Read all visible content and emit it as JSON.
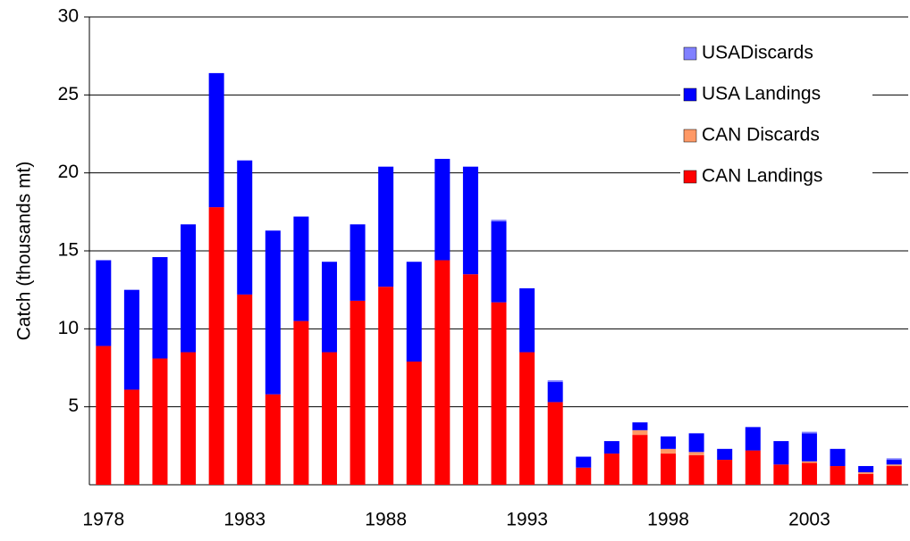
{
  "chart_data": {
    "type": "stacked_bar",
    "y_label": "Catch (thousands mt)",
    "categories": [
      "1978",
      null,
      null,
      null,
      null,
      "1983",
      null,
      null,
      null,
      null,
      "1988",
      null,
      null,
      null,
      null,
      "1993",
      null,
      null,
      null,
      null,
      "1998",
      null,
      null,
      null,
      null,
      "2003",
      null,
      null,
      null
    ],
    "series": [
      {
        "name": "CAN Landings",
        "color": "#ff0000",
        "values": [
          8.9,
          6.1,
          8.1,
          8.5,
          17.8,
          12.2,
          5.8,
          10.5,
          8.5,
          11.8,
          12.7,
          7.9,
          14.4,
          13.5,
          11.7,
          8.5,
          5.3,
          1.1,
          2.0,
          3.2,
          2.0,
          1.9,
          1.6,
          2.2,
          1.3,
          1.4,
          1.2,
          0.7,
          1.2
        ]
      },
      {
        "name": "CAN Discards",
        "color": "#ff9966",
        "values": [
          0,
          0,
          0,
          0,
          0,
          0,
          0,
          0,
          0,
          0,
          0,
          0,
          0,
          0,
          0,
          0,
          0,
          0,
          0,
          0.3,
          0.3,
          0.2,
          0,
          0,
          0,
          0.1,
          0,
          0.1,
          0.1
        ]
      },
      {
        "name": "USA Landings",
        "color": "#0000ff",
        "values": [
          5.5,
          6.4,
          6.5,
          8.2,
          8.6,
          8.6,
          10.5,
          6.7,
          5.8,
          4.9,
          7.7,
          6.4,
          6.5,
          6.9,
          5.2,
          4.1,
          1.3,
          0.7,
          0.8,
          0.5,
          0.8,
          1.2,
          0.7,
          1.5,
          1.5,
          1.8,
          1.1,
          0.4,
          0.3
        ]
      },
      {
        "name": "USADiscards",
        "color": "#8080ff",
        "values": [
          0,
          0,
          0,
          0,
          0,
          0,
          0,
          0,
          0,
          0,
          0,
          0,
          0,
          0,
          0.1,
          0,
          0.1,
          0,
          0,
          0,
          0,
          0,
          0,
          0,
          0,
          0.1,
          0,
          0,
          0.1
        ]
      }
    ],
    "ylim": [
      0,
      30
    ],
    "yticks": [
      5,
      10,
      15,
      20,
      25,
      30
    ],
    "grid": true,
    "legend": "upper right"
  }
}
